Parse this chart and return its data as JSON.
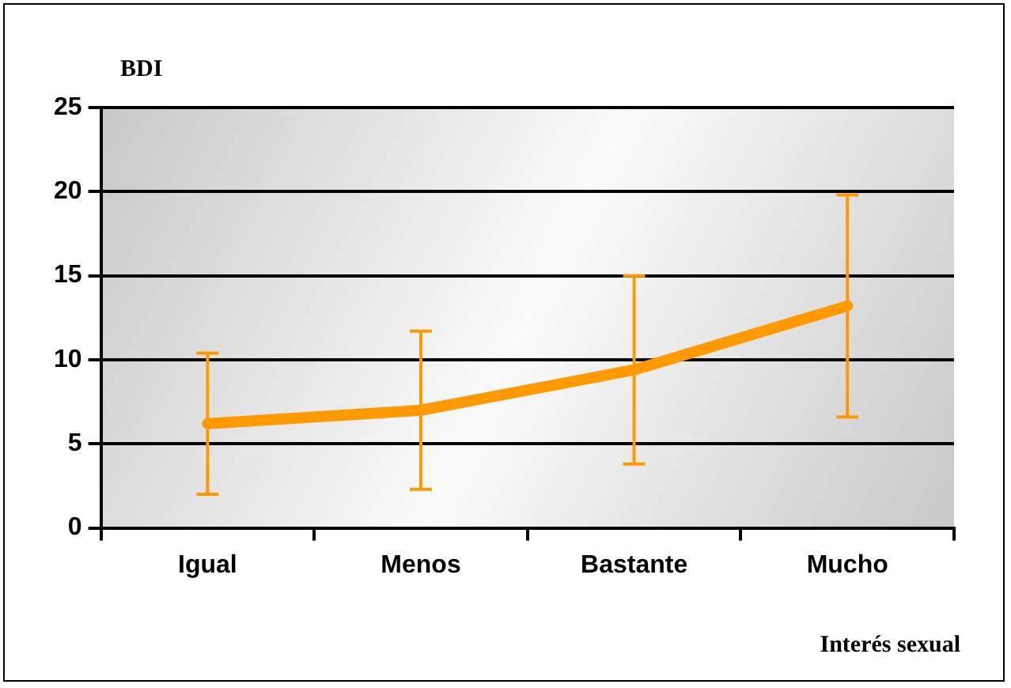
{
  "chart_data": {
    "type": "line",
    "ylabel": "BDI",
    "xlabel": "Interés sexual",
    "categories": [
      "Igual",
      "Menos",
      "Bastante",
      "Mucho"
    ],
    "series": [
      {
        "color": "#ff9900",
        "values": [
          6.2,
          7.0,
          9.4,
          13.2
        ],
        "errors": [
          4.2,
          4.7,
          5.6,
          6.6
        ]
      }
    ],
    "ylim": [
      0,
      25
    ],
    "yticks": [
      0,
      5,
      10,
      15,
      20,
      25
    ],
    "grid": "y",
    "legend": false,
    "marker": "none"
  }
}
